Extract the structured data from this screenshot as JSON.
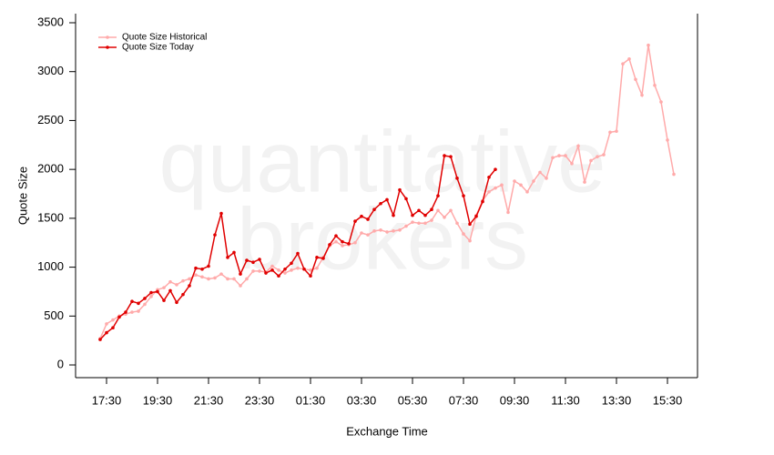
{
  "chart_data": {
    "type": "line",
    "watermark": [
      "quantitative",
      "brokers"
    ],
    "y_label": "Quote Size",
    "x_label": "Exchange Time",
    "categories": [
      null,
      "17:30",
      null,
      null,
      null,
      null,
      null,
      null,
      null,
      "19:30",
      null,
      null,
      null,
      null,
      null,
      null,
      null,
      "21:30",
      null,
      null,
      null,
      null,
      null,
      null,
      null,
      "23:30",
      null,
      null,
      null,
      null,
      null,
      null,
      null,
      "01:30",
      null,
      null,
      null,
      null,
      null,
      null,
      null,
      "03:30",
      null,
      null,
      null,
      null,
      null,
      null,
      null,
      "05:30",
      null,
      null,
      null,
      null,
      null,
      null,
      null,
      "07:30",
      null,
      null,
      null,
      null,
      null,
      null,
      null,
      "09:30",
      null,
      null,
      null,
      null,
      null,
      null,
      null,
      "11:30",
      null,
      null,
      null,
      null,
      null,
      null,
      null,
      "13:30",
      null,
      null,
      null,
      null,
      null,
      null,
      null,
      "15:30",
      null
    ],
    "series": [
      {
        "name": "Quote Size Historical",
        "color": "#ffaaaa",
        "values": [
          270,
          420,
          460,
          500,
          520,
          540,
          550,
          620,
          700,
          770,
          790,
          850,
          820,
          860,
          880,
          920,
          900,
          880,
          890,
          930,
          880,
          880,
          810,
          880,
          960,
          960,
          950,
          1010,
          970,
          940,
          970,
          990,
          980,
          970,
          990,
          1100,
          1220,
          1260,
          1220,
          1230,
          1250,
          1350,
          1330,
          1370,
          1380,
          1360,
          1370,
          1380,
          1420,
          1460,
          1450,
          1450,
          1480,
          1580,
          1510,
          1580,
          1450,
          1340,
          1270,
          1530,
          1680,
          1770,
          1810,
          1840,
          1560,
          1880,
          1840,
          1770,
          1880,
          1970,
          1910,
          2120,
          2140,
          2140,
          2060,
          2240,
          1870,
          2090,
          2130,
          2150,
          2380,
          2390,
          3080,
          3130,
          2920,
          2760,
          3270,
          2860,
          2690,
          2300,
          1950
        ]
      },
      {
        "name": "Quote Size Today",
        "color": "#e00000",
        "values": [
          260,
          330,
          380,
          490,
          540,
          650,
          630,
          680,
          740,
          750,
          660,
          760,
          640,
          720,
          810,
          990,
          980,
          1010,
          1330,
          1550,
          1100,
          1150,
          930,
          1070,
          1050,
          1080,
          940,
          970,
          910,
          980,
          1040,
          1140,
          980,
          910,
          1100,
          1090,
          1230,
          1320,
          1260,
          1240,
          1470,
          1520,
          1490,
          1590,
          1650,
          1690,
          1530,
          1790,
          1700,
          1530,
          1580,
          1530,
          1590,
          1730,
          2140,
          2130,
          1910,
          1730,
          1440,
          1520,
          1670,
          1920,
          2000,
          null,
          null,
          null,
          null,
          null,
          null,
          null,
          null,
          null,
          null,
          null,
          null,
          null,
          null,
          null,
          null,
          null,
          null,
          null,
          null,
          null,
          null,
          null,
          null,
          null,
          null,
          null,
          null
        ]
      }
    ],
    "ylim": [
      -130,
      3593
    ],
    "yticks": [
      0,
      500,
      1000,
      1500,
      2000,
      2500,
      3000,
      3500
    ],
    "legend": "top-left"
  }
}
